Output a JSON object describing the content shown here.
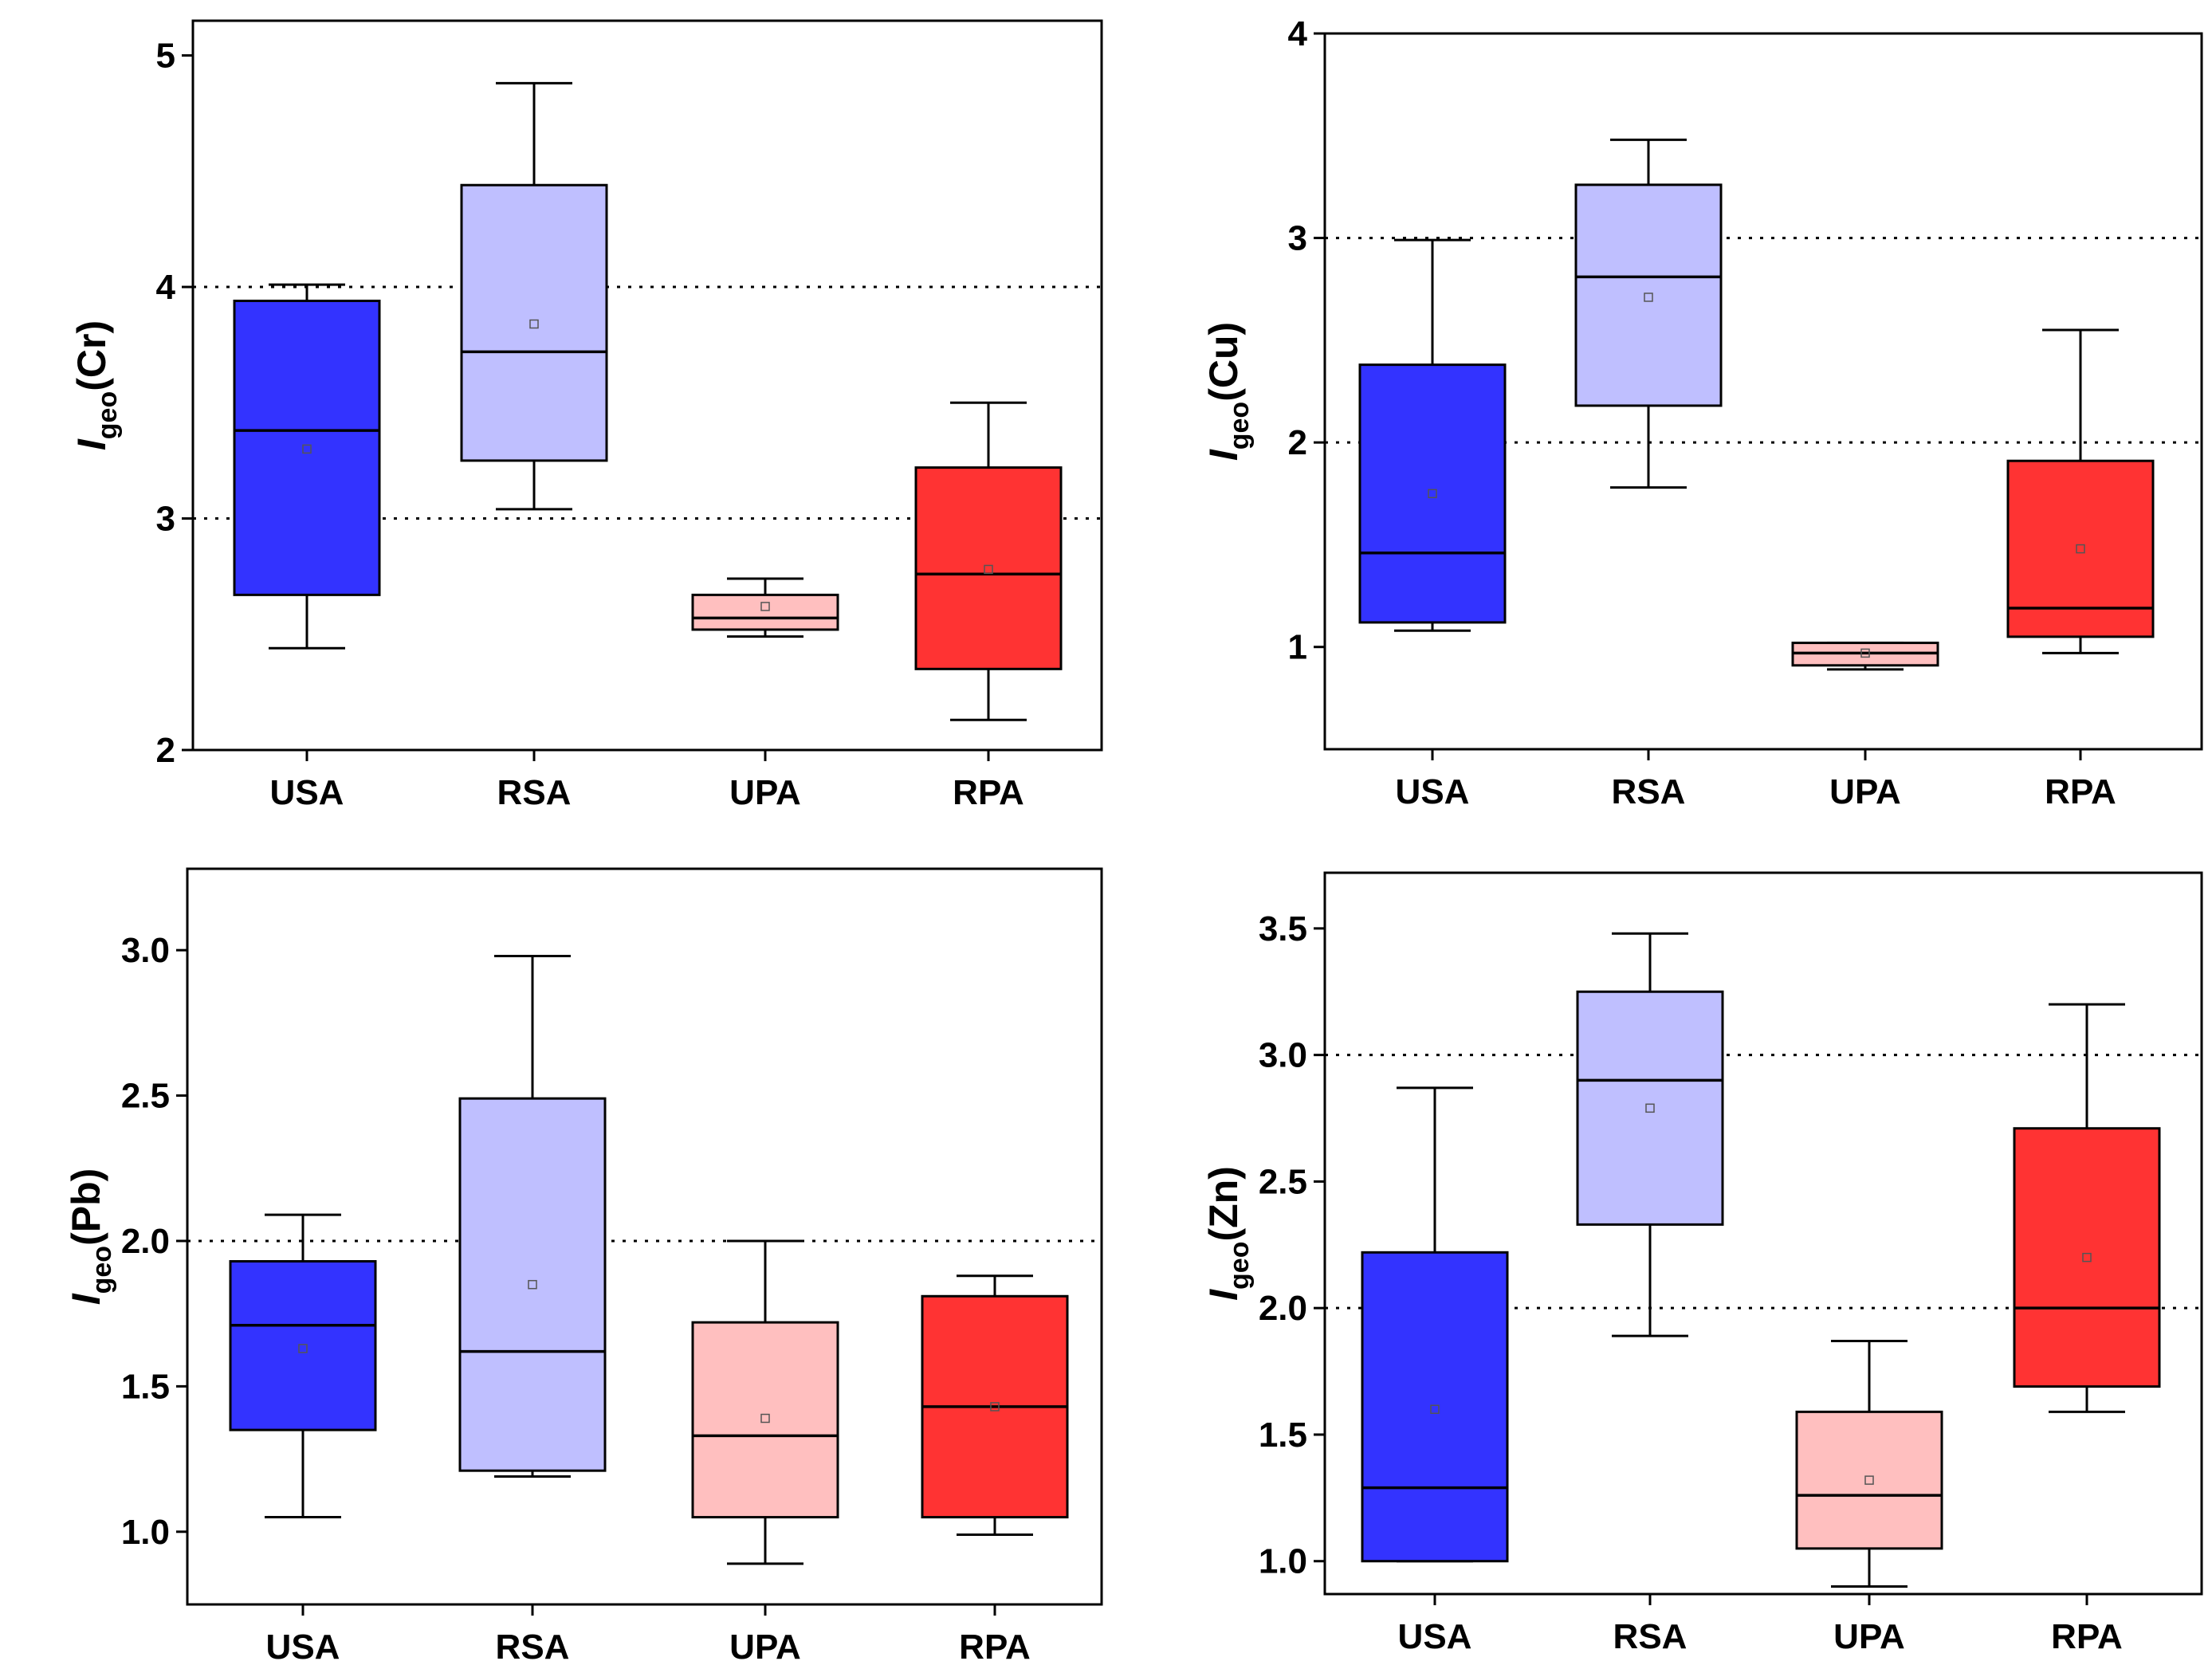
{
  "chart_data": [
    {
      "type": "box",
      "ylabel": {
        "symbol": "I",
        "subscript": "geo",
        "element": "(Cr)"
      },
      "ylim": [
        2,
        5.15
      ],
      "yticks": [
        "2",
        "3",
        "4",
        "5"
      ],
      "ytick_values": [
        2,
        3,
        4,
        5
      ],
      "reference_lines": [
        3,
        4
      ],
      "categories": [
        "USA",
        "RSA",
        "UPA",
        "RPA"
      ],
      "colors": [
        "#3333ff",
        "#bfbfff",
        "#ffbfbf",
        "#ff3333"
      ],
      "boxes": [
        {
          "whisker_low": 2.44,
          "q1": 2.67,
          "median": 3.38,
          "q3": 3.94,
          "whisker_high": 4.01,
          "mean": 3.3
        },
        {
          "whisker_low": 3.04,
          "q1": 3.25,
          "median": 3.72,
          "q3": 4.44,
          "whisker_high": 4.88,
          "mean": 3.84
        },
        {
          "whisker_low": 2.49,
          "q1": 2.52,
          "median": 2.57,
          "q3": 2.67,
          "whisker_high": 2.74,
          "mean": 2.62
        },
        {
          "whisker_low": 2.13,
          "q1": 2.35,
          "median": 2.76,
          "q3": 3.22,
          "whisker_high": 3.5,
          "mean": 2.78
        }
      ]
    },
    {
      "type": "box",
      "ylabel": {
        "symbol": "I",
        "subscript": "geo",
        "element": "(Cu)"
      },
      "ylim": [
        0.5,
        4.0
      ],
      "yticks": [
        "1",
        "2",
        "3",
        "4"
      ],
      "ytick_values": [
        1,
        2,
        3,
        4
      ],
      "reference_lines": [
        2,
        3
      ],
      "categories": [
        "USA",
        "RSA",
        "UPA",
        "RPA"
      ],
      "colors": [
        "#3333ff",
        "#bfbfff",
        "#ffbfbf",
        "#ff3333"
      ],
      "boxes": [
        {
          "whisker_low": 1.08,
          "q1": 1.12,
          "median": 1.46,
          "q3": 2.38,
          "whisker_high": 2.99,
          "mean": 1.75
        },
        {
          "whisker_low": 1.78,
          "q1": 2.18,
          "median": 2.81,
          "q3": 3.26,
          "whisker_high": 3.48,
          "mean": 2.71
        },
        {
          "whisker_low": 0.89,
          "q1": 0.91,
          "median": 0.97,
          "q3": 1.02,
          "whisker_high": 1.02,
          "mean": 0.97
        },
        {
          "whisker_low": 0.97,
          "q1": 1.05,
          "median": 1.19,
          "q3": 1.91,
          "whisker_high": 2.55,
          "mean": 1.48
        }
      ]
    },
    {
      "type": "box",
      "ylabel": {
        "symbol": "I",
        "subscript": "geo",
        "element": "(Pb)"
      },
      "ylim": [
        0.75,
        3.28
      ],
      "yticks": [
        "1.0",
        "1.5",
        "2.0",
        "2.5",
        "3.0"
      ],
      "ytick_values": [
        1.0,
        1.5,
        2.0,
        2.5,
        3.0
      ],
      "reference_lines": [
        2.0
      ],
      "categories": [
        "USA",
        "RSA",
        "UPA",
        "RPA"
      ],
      "colors": [
        "#3333ff",
        "#bfbfff",
        "#ffbfbf",
        "#ff3333"
      ],
      "boxes": [
        {
          "whisker_low": 1.05,
          "q1": 1.35,
          "median": 1.71,
          "q3": 1.93,
          "whisker_high": 2.09,
          "mean": 1.63
        },
        {
          "whisker_low": 1.19,
          "q1": 1.21,
          "median": 1.62,
          "q3": 2.49,
          "whisker_high": 2.98,
          "mean": 1.85
        },
        {
          "whisker_low": 0.89,
          "q1": 1.05,
          "median": 1.33,
          "q3": 1.72,
          "whisker_high": 2.0,
          "mean": 1.39
        },
        {
          "whisker_low": 0.99,
          "q1": 1.05,
          "median": 1.43,
          "q3": 1.81,
          "whisker_high": 1.88,
          "mean": 1.43
        }
      ]
    },
    {
      "type": "box",
      "ylabel": {
        "symbol": "I",
        "subscript": "geo",
        "element": "(Zn)"
      },
      "ylim": [
        0.87,
        3.72
      ],
      "yticks": [
        "1.0",
        "1.5",
        "2.0",
        "2.5",
        "3.0",
        "3.5"
      ],
      "ytick_values": [
        1.0,
        1.5,
        2.0,
        2.5,
        3.0,
        3.5
      ],
      "reference_lines": [
        2.0,
        3.0
      ],
      "categories": [
        "USA",
        "RSA",
        "UPA",
        "RPA"
      ],
      "colors": [
        "#3333ff",
        "#bfbfff",
        "#ffbfbf",
        "#ff3333"
      ],
      "boxes": [
        {
          "whisker_low": 1.0,
          "q1": 1.0,
          "median": 1.29,
          "q3": 2.22,
          "whisker_high": 2.87,
          "mean": 1.6
        },
        {
          "whisker_low": 1.89,
          "q1": 2.33,
          "median": 2.9,
          "q3": 3.25,
          "whisker_high": 3.48,
          "mean": 2.79
        },
        {
          "whisker_low": 0.9,
          "q1": 1.05,
          "median": 1.26,
          "q3": 1.59,
          "whisker_high": 1.87,
          "mean": 1.32
        },
        {
          "whisker_low": 1.59,
          "q1": 1.69,
          "median": 2.0,
          "q3": 2.71,
          "whisker_high": 3.2,
          "mean": 2.2
        }
      ]
    }
  ]
}
